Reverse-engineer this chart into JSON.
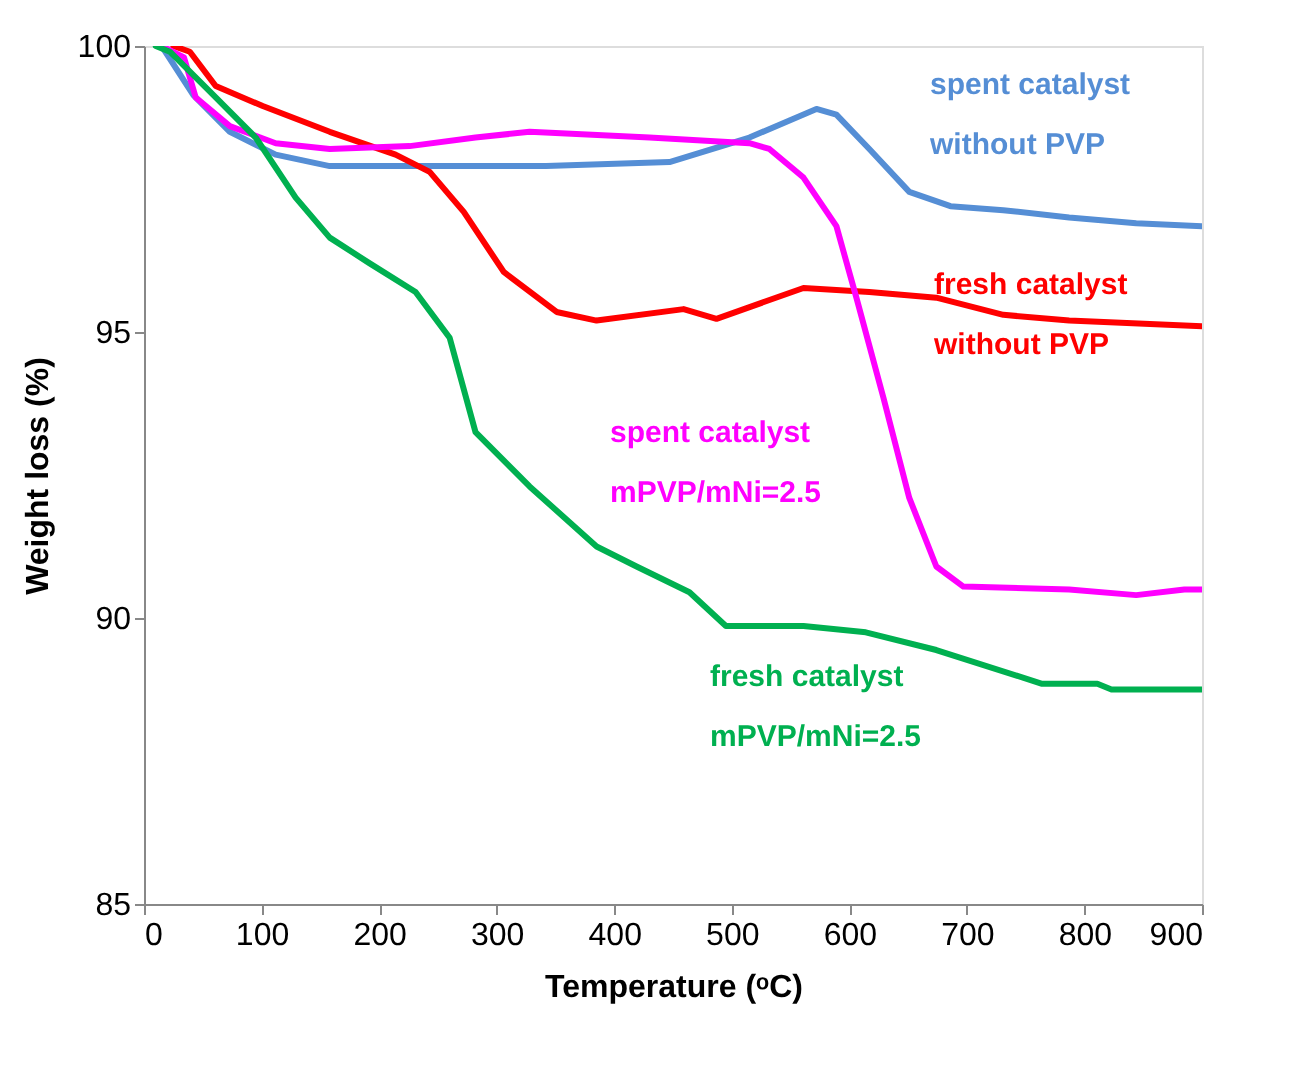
{
  "chart_data": {
    "type": "line",
    "xlabel": "Temperature (ᵒC)",
    "ylabel": "Weight loss (%)",
    "xlim": [
      0,
      900
    ],
    "ylim": [
      85,
      100
    ],
    "xticks": [
      0,
      100,
      200,
      300,
      400,
      500,
      600,
      700,
      800,
      900
    ],
    "yticks": [
      85,
      90,
      95,
      100
    ],
    "grid": false,
    "legend": false,
    "marker": "none",
    "line_style": "solid",
    "series": [
      {
        "name": "spent catalyst\nwithout PVP",
        "color": "#558ed5",
        "x": [
          15,
          42,
          73,
          112,
          158,
          226,
          342,
          447,
          515,
          572,
          589,
          617,
          651,
          686,
          731,
          787,
          844,
          900
        ],
        "values": [
          100,
          99.14,
          98.5,
          98.1,
          97.9,
          97.9,
          97.9,
          97.97,
          98.4,
          98.9,
          98.8,
          98.2,
          97.45,
          97.2,
          97.13,
          97.0,
          96.9,
          96.85
        ]
      },
      {
        "name": "fresh catalyst\nwithout PVP",
        "color": "#ff0000",
        "x": [
          25,
          39,
          61,
          101,
          158,
          214,
          243,
          272,
          306,
          351,
          385,
          459,
          487,
          561,
          617,
          674,
          731,
          787,
          900
        ],
        "values": [
          100,
          99.9,
          99.3,
          98.95,
          98.5,
          98.1,
          97.8,
          97.1,
          96.05,
          95.35,
          95.2,
          95.4,
          95.23,
          95.77,
          95.7,
          95.6,
          95.3,
          95.2,
          95.1
        ]
      },
      {
        "name": "spent catalyst\nmPVP/mNi=2.5",
        "color": "#ff00ff",
        "x": [
          15,
          34,
          44,
          73,
          112,
          158,
          226,
          282,
          328,
          430,
          515,
          532,
          561,
          589,
          606,
          629,
          651,
          674,
          697,
          787,
          844,
          885,
          900
        ],
        "values": [
          100,
          99.8,
          99.1,
          98.6,
          98.3,
          98.2,
          98.25,
          98.4,
          98.5,
          98.4,
          98.3,
          98.2,
          97.7,
          96.85,
          95.6,
          93.85,
          92.1,
          90.9,
          90.55,
          90.5,
          90.4,
          90.5,
          90.5
        ]
      },
      {
        "name": "fresh catalyst\nmPVP/mNi=2.5",
        "color": "#00b050",
        "x": [
          10,
          22,
          61,
          95,
          129,
          158,
          192,
          231,
          260,
          282,
          328,
          385,
          419,
          464,
          495,
          561,
          614,
          674,
          764,
          811,
          823,
          900
        ],
        "values": [
          100,
          99.9,
          99.1,
          98.4,
          97.35,
          96.65,
          96.2,
          95.7,
          94.9,
          93.25,
          92.3,
          91.25,
          90.9,
          90.45,
          89.86,
          89.86,
          89.75,
          89.44,
          88.85,
          88.85,
          88.75,
          88.75
        ]
      }
    ]
  }
}
